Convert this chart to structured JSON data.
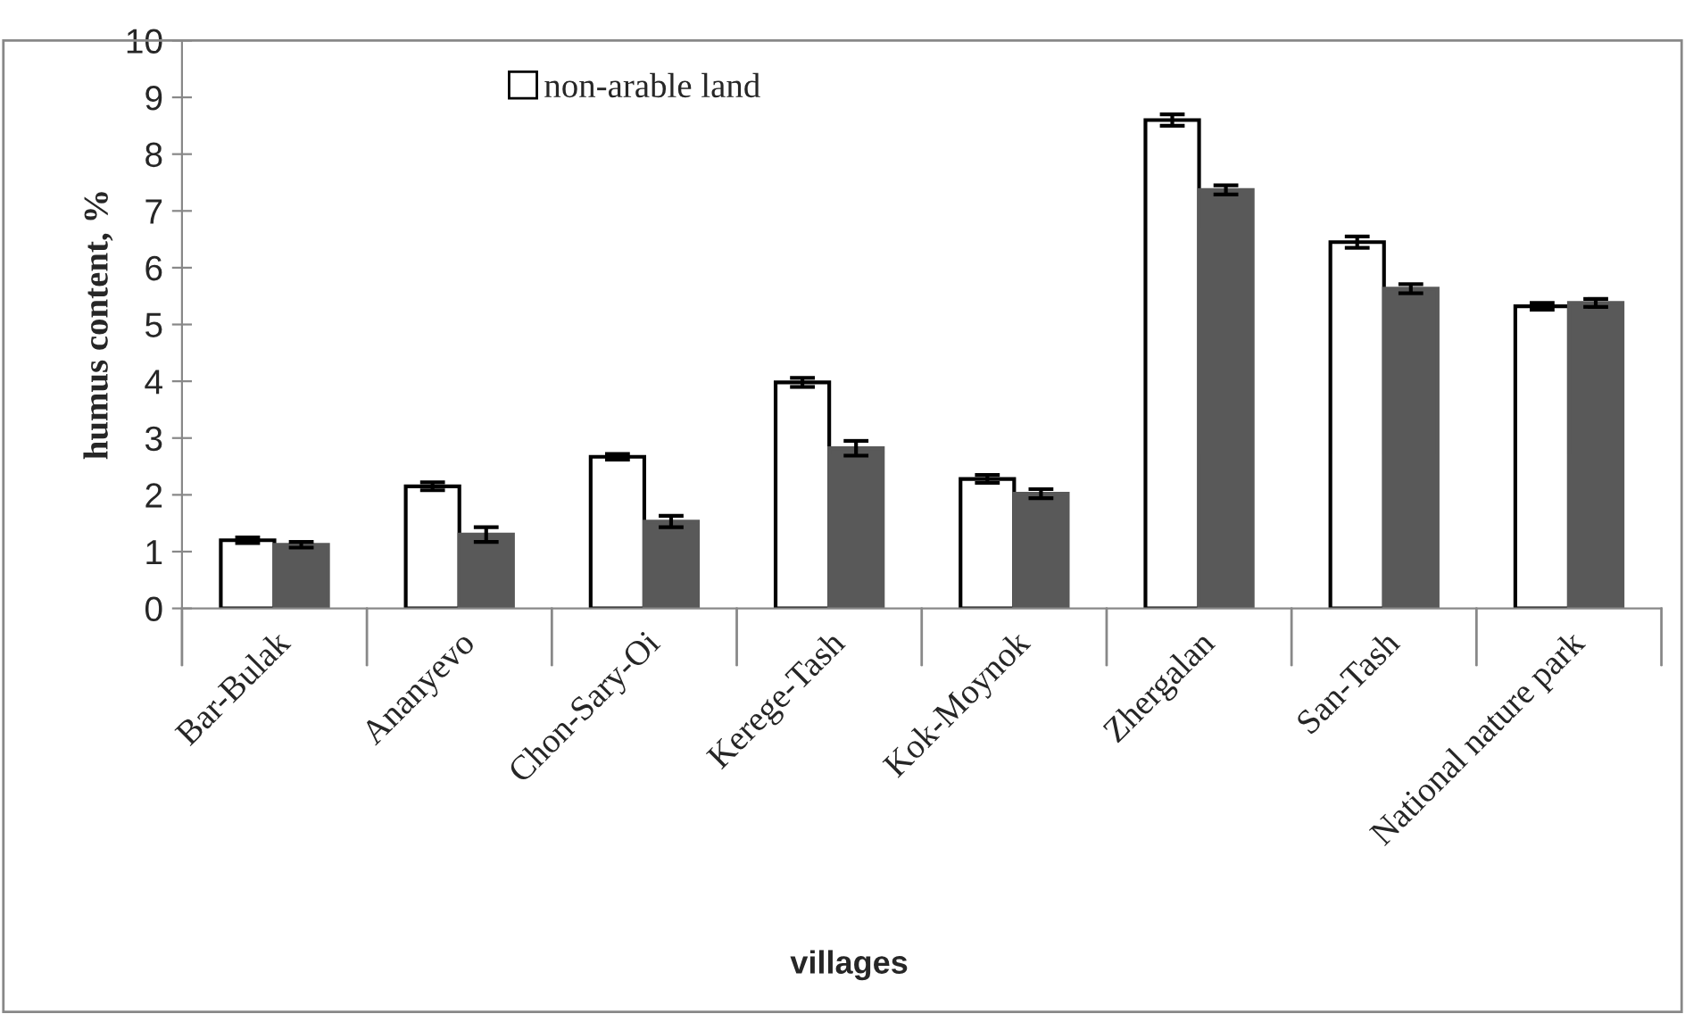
{
  "chart_data": {
    "type": "bar",
    "xlabel": "villages",
    "ylabel": "humus content, %",
    "categories": [
      "Bar-Bulak",
      "Ananyevo",
      "Chon-Sary-Oi",
      "Kerege-Tash",
      "Kok-Moynok",
      "Zhergalan",
      "San-Tash",
      "National nature park"
    ],
    "series": [
      {
        "name": "non-arable land",
        "color": "#ffffff",
        "values": [
          1.2,
          2.15,
          2.67,
          3.98,
          2.28,
          8.6,
          6.45,
          5.32
        ],
        "errors": [
          0.05,
          0.07,
          0.05,
          0.08,
          0.07,
          0.1,
          0.1,
          0.06
        ]
      },
      {
        "color": "#595959",
        "values": [
          1.12,
          1.3,
          1.53,
          2.82,
          2.02,
          7.37,
          5.63,
          5.38
        ],
        "errors": [
          0.05,
          0.13,
          0.1,
          0.13,
          0.08,
          0.08,
          0.08,
          0.07
        ]
      }
    ],
    "ylim": [
      0,
      10
    ],
    "yticks": [
      0,
      1,
      2,
      3,
      4,
      5,
      6,
      7,
      8,
      9,
      10
    ],
    "grid": false,
    "legend": "top left"
  }
}
